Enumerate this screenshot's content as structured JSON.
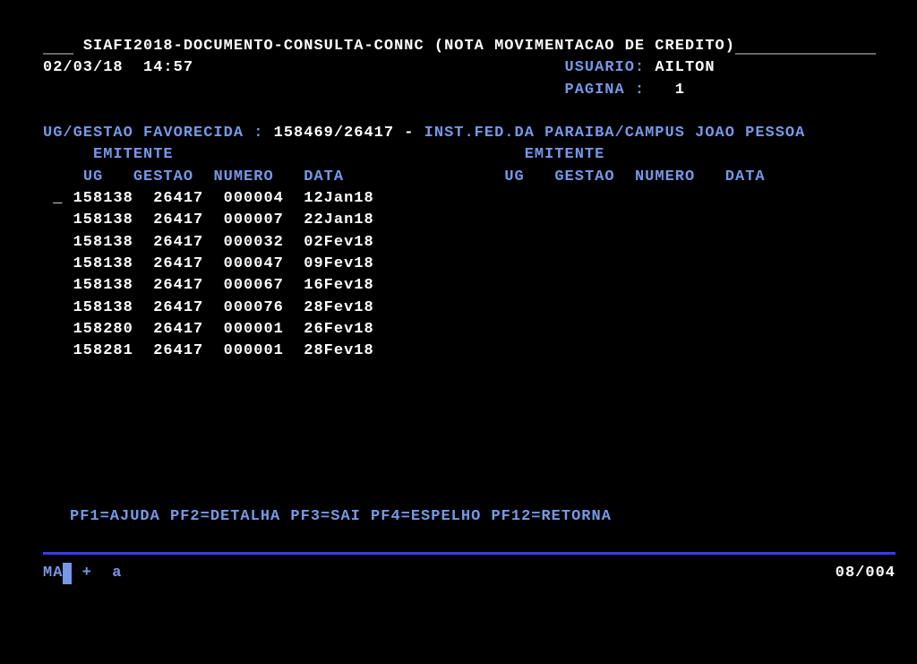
{
  "colors": {
    "background": "#000000",
    "text_white": "#ffffff",
    "text_cyan": "#7598e8",
    "divider": "#3838ff",
    "dim": "#686868"
  },
  "header": {
    "breadcrumb": "SIAFI2018-DOCUMENTO-CONSULTA-CONNC (NOTA MOVIMENTACAO DE CREDITO)",
    "date": "02/03/18",
    "time": "14:57",
    "usuario_label": "USUARIO:",
    "usuario_value": "AILTON",
    "pagina_label": "PAGINA :",
    "pagina_value": "1"
  },
  "favorecida": {
    "label": "UG/GESTAO FAVORECIDA :",
    "code": "158469/26417",
    "sep": "-",
    "name": "INST.FED.DA PARAIBA/CAMPUS JOAO PESSOA"
  },
  "columns": {
    "emitente": "EMITENTE",
    "ug": "UG",
    "gestao": "GESTAO",
    "numero": "NUMERO",
    "data": "DATA"
  },
  "rows": [
    {
      "ug": "158138",
      "gestao": "26417",
      "numero": "000004",
      "data": "12Jan18"
    },
    {
      "ug": "158138",
      "gestao": "26417",
      "numero": "000007",
      "data": "22Jan18"
    },
    {
      "ug": "158138",
      "gestao": "26417",
      "numero": "000032",
      "data": "02Fev18"
    },
    {
      "ug": "158138",
      "gestao": "26417",
      "numero": "000047",
      "data": "09Fev18"
    },
    {
      "ug": "158138",
      "gestao": "26417",
      "numero": "000067",
      "data": "16Fev18"
    },
    {
      "ug": "158138",
      "gestao": "26417",
      "numero": "000076",
      "data": "28Fev18"
    },
    {
      "ug": "158280",
      "gestao": "26417",
      "numero": "000001",
      "data": "26Fev18"
    },
    {
      "ug": "158281",
      "gestao": "26417",
      "numero": "000001",
      "data": "28Fev18"
    }
  ],
  "fkeys": "PF1=AJUDA PF2=DETALHA PF3=SAI PF4=ESPELHO PF12=RETORNA",
  "status": {
    "left_prefix": "MA",
    "plus": "+",
    "mode": "a",
    "position": "08/004"
  }
}
